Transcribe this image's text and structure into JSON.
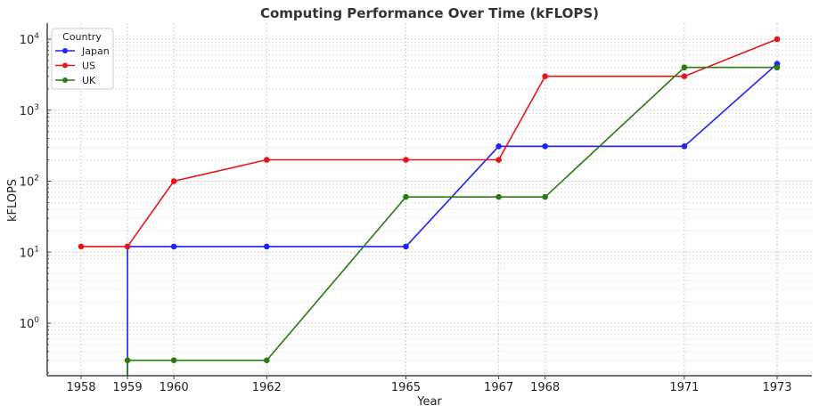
{
  "chart_data": {
    "type": "line",
    "title": "Computing Performance Over Time (kFLOPS)",
    "xlabel": "Year",
    "ylabel": "kFLOPS",
    "yscale": "log",
    "ylim": [
      0.17,
      17000
    ],
    "x_ticks": [
      1958,
      1959,
      1960,
      1962,
      1965,
      1967,
      1968,
      1971,
      1973
    ],
    "y_ticks": [
      "10^0",
      "10^1",
      "10^2",
      "10^3",
      "10^4"
    ],
    "grid": true,
    "legend": {
      "title": "Country",
      "position": "upper left",
      "entries": [
        "Japan",
        "US",
        "UK"
      ]
    },
    "series": [
      {
        "name": "Japan",
        "color": "#1f1fff",
        "x": [
          1959,
          1960,
          1962,
          1965,
          1967,
          1968,
          1971,
          1973
        ],
        "values": [
          12,
          12,
          12,
          12,
          310,
          310,
          310,
          4500
        ],
        "note": "line rises from below axis at 1959"
      },
      {
        "name": "US",
        "color": "#e8141a",
        "x": [
          1958,
          1959,
          1960,
          1962,
          1965,
          1967,
          1968,
          1971,
          1973
        ],
        "values": [
          12,
          12,
          100,
          200,
          200,
          200,
          3000,
          3000,
          10000
        ]
      },
      {
        "name": "UK",
        "color": "#2a7a0e",
        "x": [
          1959,
          1960,
          1962,
          1965,
          1967,
          1968,
          1971,
          1973
        ],
        "values": [
          0.3,
          0.3,
          0.3,
          60,
          60,
          60,
          4000,
          4000
        ],
        "note": "line rises from below axis at 1959"
      }
    ]
  }
}
